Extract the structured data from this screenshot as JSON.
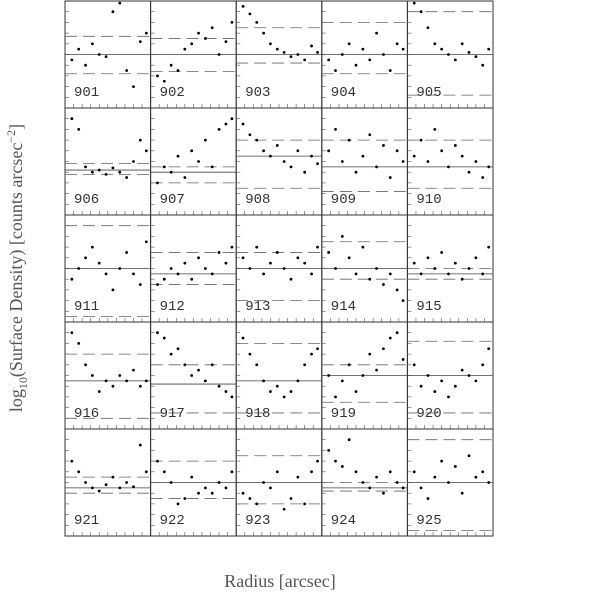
{
  "chart_data": {
    "type": "scatter",
    "xlabel": "Radius [arcsec]",
    "ylabel": [
      "log",
      "10",
      "(Surface Density) [counts arcsec",
      "−2",
      "]"
    ],
    "xlim": [
      0,
      1
    ],
    "ylim": [
      0,
      1
    ],
    "x": [
      0.08,
      0.16,
      0.24,
      0.32,
      0.4,
      0.48,
      0.56,
      0.64,
      0.72,
      0.8,
      0.88,
      0.95
    ],
    "panels": [
      {
        "label": "901",
        "level": 0.5,
        "bounds": [
          0.67,
          0.32
        ],
        "values": [
          0.45,
          0.55,
          0.4,
          0.6,
          0.5,
          0.48,
          0.9,
          0.98,
          0.35,
          0.2,
          0.62,
          0.7
        ]
      },
      {
        "label": "902",
        "level": 0.5,
        "bounds": [
          0.65,
          0.34
        ],
        "values": [
          0.3,
          0.25,
          0.4,
          0.35,
          0.55,
          0.6,
          0.7,
          0.65,
          0.75,
          0.5,
          0.62,
          0.8
        ]
      },
      {
        "label": "903",
        "level": 0.5,
        "bounds": [
          0.75,
          0.42
        ],
        "values": [
          0.95,
          0.88,
          0.8,
          0.7,
          0.6,
          0.55,
          0.52,
          0.48,
          0.5,
          0.45,
          0.58,
          0.52
        ]
      },
      {
        "label": "904",
        "level": 0.5,
        "bounds": [
          0.8,
          0.32
        ],
        "values": [
          0.45,
          0.35,
          0.5,
          0.6,
          0.4,
          0.55,
          0.45,
          0.7,
          0.5,
          0.35,
          0.6,
          0.55
        ]
      },
      {
        "label": "905",
        "level": 0.5,
        "bounds": [
          0.9,
          0.12
        ],
        "values": [
          0.98,
          0.9,
          0.75,
          0.6,
          0.55,
          0.5,
          0.45,
          0.6,
          0.52,
          0.48,
          0.4,
          0.55
        ]
      },
      {
        "label": "906",
        "level": 0.42,
        "bounds": [
          0.48,
          0.38
        ],
        "values": [
          0.9,
          0.8,
          0.45,
          0.4,
          0.42,
          0.38,
          0.44,
          0.4,
          0.35,
          0.5,
          0.7,
          0.6
        ]
      },
      {
        "label": "907",
        "level": 0.4,
        "bounds": [
          0.45,
          0.3
        ],
        "values": [
          0.3,
          0.45,
          0.4,
          0.55,
          0.35,
          0.6,
          0.5,
          0.7,
          0.45,
          0.8,
          0.85,
          0.9
        ]
      },
      {
        "label": "908",
        "level": 0.55,
        "bounds": [
          0.7,
          0.25
        ],
        "values": [
          0.85,
          0.75,
          0.7,
          0.6,
          0.55,
          0.65,
          0.5,
          0.45,
          0.6,
          0.4,
          0.55,
          0.48
        ]
      },
      {
        "label": "909",
        "level": 0.45,
        "bounds": [
          0.7,
          0.22
        ],
        "values": [
          0.6,
          0.8,
          0.5,
          0.7,
          0.4,
          0.55,
          0.75,
          0.45,
          0.65,
          0.35,
          0.6,
          0.5
        ]
      },
      {
        "label": "910",
        "level": 0.45,
        "bounds": [
          0.7,
          0.25
        ],
        "values": [
          0.55,
          0.7,
          0.5,
          0.8,
          0.6,
          0.45,
          0.65,
          0.55,
          0.4,
          0.5,
          0.35,
          0.45
        ]
      },
      {
        "label": "911",
        "level": 0.5,
        "bounds": [
          0.9,
          0.05
        ],
        "values": [
          0.4,
          0.5,
          0.6,
          0.7,
          0.55,
          0.45,
          0.3,
          0.5,
          0.65,
          0.45,
          0.35,
          0.75
        ]
      },
      {
        "label": "912",
        "level": 0.45,
        "bounds": [
          0.65,
          0.35
        ],
        "values": [
          0.35,
          0.4,
          0.5,
          0.45,
          0.55,
          0.4,
          0.6,
          0.5,
          0.45,
          0.65,
          0.55,
          0.7
        ]
      },
      {
        "label": "913",
        "level": 0.5,
        "bounds": [
          0.65,
          0.2
        ],
        "values": [
          0.6,
          0.5,
          0.7,
          0.45,
          0.55,
          0.65,
          0.5,
          0.4,
          0.6,
          0.55,
          0.45,
          0.7
        ]
      },
      {
        "label": "914",
        "level": 0.5,
        "bounds": [
          0.75,
          0.4
        ],
        "values": [
          0.65,
          0.5,
          0.8,
          0.6,
          0.45,
          0.7,
          0.4,
          0.5,
          0.35,
          0.45,
          0.3,
          0.2
        ]
      },
      {
        "label": "915",
        "level": 0.45,
        "bounds": [
          0.5,
          0.4
        ],
        "values": [
          0.55,
          0.45,
          0.6,
          0.5,
          0.65,
          0.45,
          0.55,
          0.4,
          0.5,
          0.6,
          0.45,
          0.7
        ]
      },
      {
        "label": "916",
        "level": 0.45,
        "bounds": [
          0.7,
          0.1
        ],
        "values": [
          0.9,
          0.8,
          0.6,
          0.5,
          0.35,
          0.45,
          0.4,
          0.5,
          0.45,
          0.55,
          0.4,
          0.45
        ]
      },
      {
        "label": "917",
        "level": 0.42,
        "bounds": [
          0.6,
          0.15
        ],
        "values": [
          0.9,
          0.85,
          0.7,
          0.75,
          0.6,
          0.5,
          0.55,
          0.45,
          0.6,
          0.4,
          0.35,
          0.3
        ]
      },
      {
        "label": "918",
        "level": 0.45,
        "bounds": [
          0.8,
          0.15
        ],
        "values": [
          0.85,
          0.7,
          0.6,
          0.45,
          0.35,
          0.4,
          0.3,
          0.35,
          0.45,
          0.6,
          0.7,
          0.75
        ]
      },
      {
        "label": "919",
        "level": 0.5,
        "bounds": [
          0.6,
          0.25
        ],
        "values": [
          0.5,
          0.3,
          0.45,
          0.6,
          0.35,
          0.5,
          0.7,
          0.55,
          0.75,
          0.85,
          0.9,
          0.65
        ]
      },
      {
        "label": "920",
        "level": 0.5,
        "bounds": [
          0.82,
          0.15
        ],
        "values": [
          0.6,
          0.4,
          0.5,
          0.35,
          0.45,
          0.3,
          0.4,
          0.55,
          0.5,
          0.45,
          0.6,
          0.75
        ]
      },
      {
        "label": "921",
        "level": 0.45,
        "bounds": [
          0.55,
          0.4
        ],
        "values": [
          0.7,
          0.6,
          0.5,
          0.45,
          0.42,
          0.48,
          0.55,
          0.45,
          0.5,
          0.46,
          0.85,
          0.6
        ]
      },
      {
        "label": "922",
        "level": 0.5,
        "bounds": [
          0.7,
          0.35
        ],
        "values": [
          0.7,
          0.6,
          0.5,
          0.3,
          0.35,
          0.55,
          0.4,
          0.45,
          0.4,
          0.5,
          0.45,
          0.6
        ]
      },
      {
        "label": "923",
        "level": 0.5,
        "bounds": [
          0.75,
          0.3
        ],
        "values": [
          0.4,
          0.35,
          0.3,
          0.5,
          0.45,
          0.6,
          0.25,
          0.35,
          0.55,
          0.3,
          0.6,
          0.7
        ]
      },
      {
        "label": "924",
        "level": 0.45,
        "bounds": [
          0.5,
          0.42
        ],
        "values": [
          0.8,
          0.7,
          0.65,
          0.9,
          0.6,
          0.5,
          0.45,
          0.55,
          0.4,
          0.6,
          0.5,
          0.45
        ]
      },
      {
        "label": "925",
        "level": 0.5,
        "bounds": [
          0.9,
          0.05
        ],
        "values": [
          0.6,
          0.45,
          0.35,
          0.55,
          0.7,
          0.5,
          0.65,
          0.4,
          0.75,
          0.55,
          0.6,
          0.5
        ]
      }
    ]
  }
}
